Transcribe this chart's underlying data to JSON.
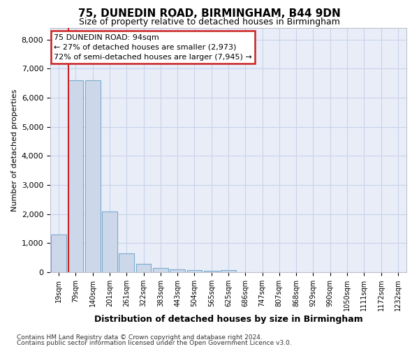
{
  "title1": "75, DUNEDIN ROAD, BIRMINGHAM, B44 9DN",
  "title2": "Size of property relative to detached houses in Birmingham",
  "xlabel": "Distribution of detached houses by size in Birmingham",
  "ylabel": "Number of detached properties",
  "footnote1": "Contains HM Land Registry data © Crown copyright and database right 2024.",
  "footnote2": "Contains public sector information licensed under the Open Government Licence v3.0.",
  "bin_labels": [
    "19sqm",
    "79sqm",
    "140sqm",
    "201sqm",
    "261sqm",
    "322sqm",
    "383sqm",
    "443sqm",
    "504sqm",
    "565sqm",
    "625sqm",
    "686sqm",
    "747sqm",
    "807sqm",
    "868sqm",
    "929sqm",
    "990sqm",
    "1050sqm",
    "1111sqm",
    "1172sqm",
    "1232sqm"
  ],
  "bar_values": [
    1300,
    6600,
    6600,
    2080,
    650,
    300,
    150,
    100,
    80,
    60,
    80,
    0,
    0,
    0,
    0,
    0,
    0,
    0,
    0,
    0,
    0
  ],
  "bar_color": "#ccd8ea",
  "bar_edge_color": "#7aabcc",
  "vline_color": "#cc2222",
  "vline_index": 1,
  "ylim_max": 8400,
  "yticks": [
    0,
    1000,
    2000,
    3000,
    4000,
    5000,
    6000,
    7000,
    8000
  ],
  "annotation_line1": "75 DUNEDIN ROAD: 94sqm",
  "annotation_line2": "← 27% of detached houses are smaller (2,973)",
  "annotation_line3": "72% of semi-detached houses are larger (7,945) →",
  "annotation_box_facecolor": "#ffffff",
  "annotation_box_edgecolor": "#cc2222",
  "grid_color": "#c8d4e8",
  "bg_color": "#e8edf8",
  "fig_facecolor": "#ffffff",
  "title1_fontsize": 11,
  "title2_fontsize": 9,
  "ylabel_fontsize": 8,
  "xlabel_fontsize": 9
}
